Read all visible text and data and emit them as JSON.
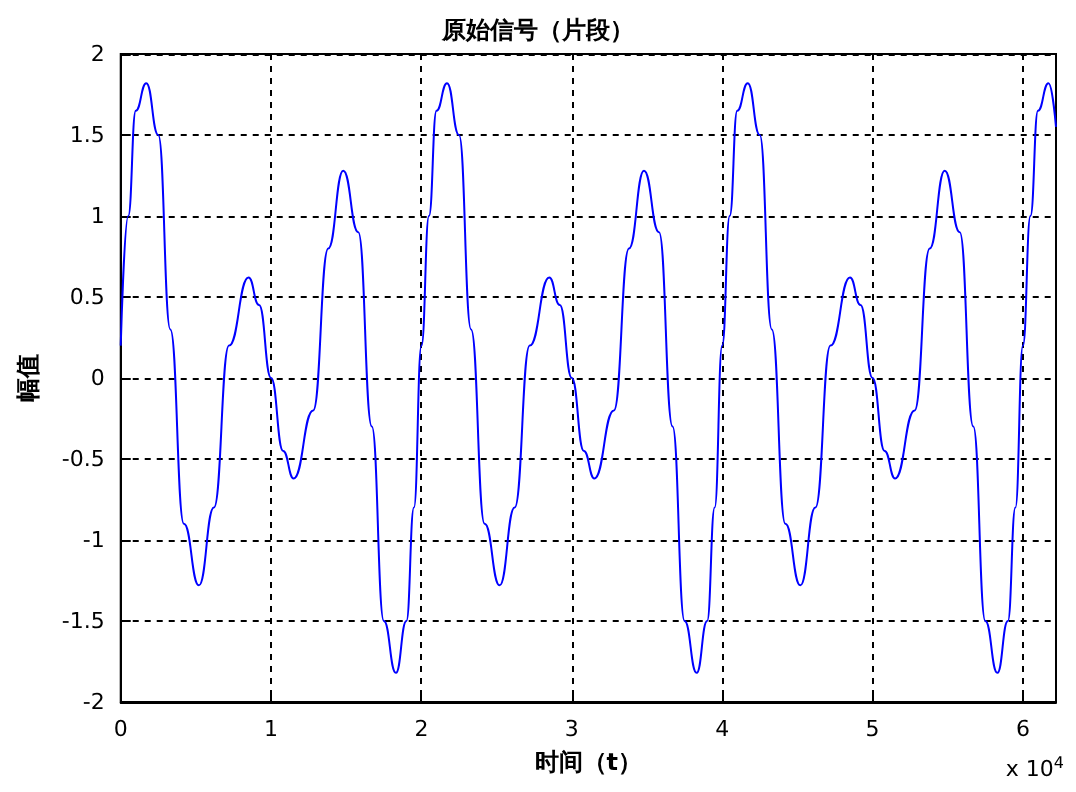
{
  "chart_data": {
    "type": "line",
    "title": "原始信号（片段）",
    "xlabel": "时间（t）",
    "ylabel": "幅值",
    "annotations": [
      "x 10$^{4}$"
    ],
    "x": [
      0,
      0.05,
      0.1,
      0.17,
      0.25,
      0.33,
      0.42,
      0.52,
      0.62,
      0.72,
      0.85,
      0.92,
      1.0,
      1.08,
      1.15,
      1.28,
      1.38,
      1.48,
      1.58,
      1.67,
      1.75,
      1.83,
      1.9,
      1.95,
      2.0,
      2.05,
      2.1,
      2.17,
      2.25,
      2.33,
      2.42,
      2.52,
      2.62,
      2.72,
      2.85,
      2.92,
      3.0,
      3.08,
      3.15,
      3.28,
      3.38,
      3.48,
      3.58,
      3.67,
      3.75,
      3.83,
      3.9,
      3.95,
      4.0,
      4.05,
      4.1,
      4.17,
      4.25,
      4.33,
      4.42,
      4.52,
      4.62,
      4.72,
      4.85,
      4.92,
      5.0,
      5.08,
      5.15,
      5.28,
      5.38,
      5.48,
      5.58,
      5.67,
      5.75,
      5.83,
      5.9,
      5.95,
      6.0,
      6.05,
      6.1,
      6.17,
      6.22
    ],
    "series": [
      {
        "color": "#0000ff",
        "values": [
          0.2,
          1.0,
          1.65,
          1.82,
          1.5,
          0.3,
          -0.9,
          -1.28,
          -0.8,
          0.2,
          0.62,
          0.45,
          0,
          -0.45,
          -0.62,
          -0.2,
          0.8,
          1.28,
          0.9,
          -0.3,
          -1.5,
          -1.82,
          -1.5,
          -0.8,
          0.2,
          1.0,
          1.65,
          1.82,
          1.5,
          0.3,
          -0.9,
          -1.28,
          -0.8,
          0.2,
          0.62,
          0.45,
          0,
          -0.45,
          -0.62,
          -0.2,
          0.8,
          1.28,
          0.9,
          -0.3,
          -1.5,
          -1.82,
          -1.5,
          -0.8,
          0.2,
          1.0,
          1.65,
          1.82,
          1.5,
          0.3,
          -0.9,
          -1.28,
          -0.8,
          0.2,
          0.62,
          0.45,
          0,
          -0.45,
          -0.62,
          -0.2,
          0.8,
          1.28,
          0.9,
          -0.3,
          -1.5,
          -1.82,
          -1.5,
          -0.8,
          0.2,
          1.0,
          1.65,
          1.82,
          1.55
        ]
      }
    ],
    "xlim": [
      0,
      6.22
    ],
    "xticks": [
      0,
      1,
      2,
      3,
      4,
      5,
      6
    ],
    "ylim": [
      -2,
      2
    ],
    "yticks": [
      -2,
      -1.5,
      -1,
      -0.5,
      0,
      0.5,
      1,
      1.5,
      2
    ],
    "grid": true,
    "line_style": "solid",
    "marker": "none"
  }
}
